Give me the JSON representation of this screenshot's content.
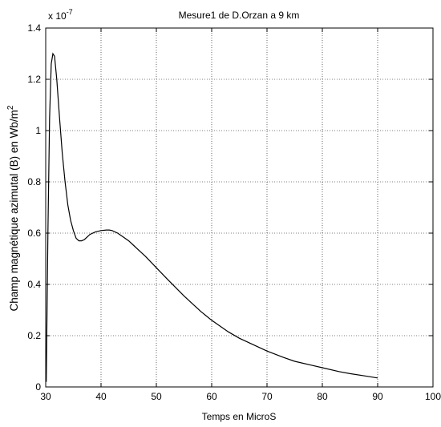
{
  "chart_data": {
    "type": "line",
    "title": "Mesure1  de D.Orzan a 9 km",
    "xlabel": "Temps en MicroS",
    "ylabel": "Champ magnétique azimutal (B) en Wb/m",
    "ylabel_unit_superscript": "2",
    "y_multiplier_base": "x 10",
    "y_multiplier_exp": "-7",
    "xlim": [
      30,
      100
    ],
    "ylim": [
      0,
      1.4
    ],
    "grid": true,
    "x_ticks": [
      30,
      40,
      50,
      60,
      70,
      80,
      90,
      100
    ],
    "x_tick_labels": [
      "30",
      "40",
      "50",
      "60",
      "70",
      "80",
      "90",
      "100"
    ],
    "y_ticks": [
      0,
      0.2,
      0.4,
      0.6,
      0.8,
      1.0,
      1.2,
      1.4
    ],
    "y_tick_labels": [
      "0",
      "0.2",
      "0.4",
      "0.6",
      "0.8",
      "1",
      "1.2",
      "1.4"
    ],
    "series": [
      {
        "x": [
          30.1,
          30.4,
          30.7,
          31.0,
          31.3,
          31.6,
          32.0,
          32.5,
          33.0,
          33.5,
          34.0,
          34.5,
          35.0,
          35.5,
          36.0,
          36.5,
          37.0,
          37.5,
          38.0,
          39.0,
          40.0,
          41.0,
          41.5,
          42.0,
          43.0,
          44.0,
          45.0,
          46.0,
          47.0,
          48.0,
          50.0,
          52.0,
          55.0,
          58.0,
          60.0,
          63.0,
          65.0,
          68.0,
          70.0,
          73.0,
          75.0,
          78.0,
          80.0,
          83.0,
          85.0,
          88.0,
          90.0
        ],
        "y": [
          0.02,
          0.6,
          1.05,
          1.26,
          1.3,
          1.29,
          1.2,
          1.05,
          0.91,
          0.8,
          0.71,
          0.65,
          0.61,
          0.58,
          0.57,
          0.57,
          0.575,
          0.585,
          0.595,
          0.605,
          0.61,
          0.612,
          0.612,
          0.61,
          0.6,
          0.585,
          0.57,
          0.55,
          0.53,
          0.51,
          0.465,
          0.42,
          0.355,
          0.295,
          0.26,
          0.215,
          0.19,
          0.16,
          0.14,
          0.115,
          0.1,
          0.085,
          0.075,
          0.06,
          0.052,
          0.042,
          0.035
        ],
        "color": "#000000"
      }
    ]
  }
}
